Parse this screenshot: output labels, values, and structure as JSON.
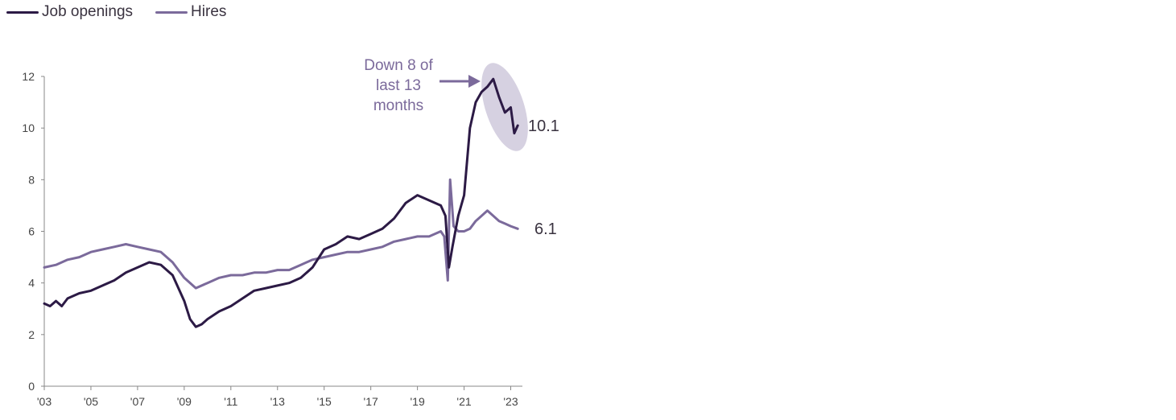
{
  "legend": [
    {
      "label": "Job openings",
      "color": "#2c1a45"
    },
    {
      "label": "Hires",
      "color": "#7b6a9b"
    }
  ],
  "annotation": {
    "lines": [
      "Down 8 of",
      "last 13",
      "months"
    ]
  },
  "end_labels": {
    "job_openings": "10.1",
    "hires": "6.1"
  },
  "chart_data": {
    "type": "line",
    "title": "",
    "xlabel": "",
    "ylabel": "",
    "xlim": [
      2003.0,
      2023.5
    ],
    "ylim": [
      0,
      12
    ],
    "yticks": [
      "0",
      "2",
      "4",
      "6",
      "8",
      "10",
      "12"
    ],
    "xticks": [
      "'03",
      "'05",
      "'07",
      "'09",
      "'11",
      "'13",
      "'15",
      "'17",
      "'19",
      "'21",
      "'23"
    ],
    "grid": false,
    "legend_position": "top-left",
    "series": [
      {
        "name": "Job openings",
        "color": "#2c1a45",
        "x": [
          2003.0,
          2003.25,
          2003.5,
          2003.75,
          2004.0,
          2004.5,
          2005.0,
          2005.5,
          2006.0,
          2006.5,
          2007.0,
          2007.5,
          2008.0,
          2008.5,
          2009.0,
          2009.25,
          2009.5,
          2009.75,
          2010.0,
          2010.5,
          2011.0,
          2011.5,
          2012.0,
          2012.5,
          2013.0,
          2013.5,
          2014.0,
          2014.5,
          2015.0,
          2015.5,
          2016.0,
          2016.5,
          2017.0,
          2017.5,
          2018.0,
          2018.5,
          2019.0,
          2019.5,
          2020.0,
          2020.2,
          2020.35,
          2020.5,
          2020.75,
          2021.0,
          2021.25,
          2021.5,
          2021.75,
          2022.0,
          2022.25,
          2022.5,
          2022.75,
          2023.0,
          2023.15,
          2023.3
        ],
        "values": [
          3.2,
          3.1,
          3.3,
          3.1,
          3.4,
          3.6,
          3.7,
          3.9,
          4.1,
          4.4,
          4.6,
          4.8,
          4.7,
          4.3,
          3.3,
          2.6,
          2.3,
          2.4,
          2.6,
          2.9,
          3.1,
          3.4,
          3.7,
          3.8,
          3.9,
          4.0,
          4.2,
          4.6,
          5.3,
          5.5,
          5.8,
          5.7,
          5.9,
          6.1,
          6.5,
          7.1,
          7.4,
          7.2,
          7.0,
          6.6,
          4.6,
          5.4,
          6.6,
          7.4,
          10.0,
          11.0,
          11.4,
          11.6,
          11.9,
          11.2,
          10.6,
          10.8,
          9.8,
          10.1
        ]
      },
      {
        "name": "Hires",
        "color": "#7b6a9b",
        "x": [
          2003.0,
          2003.5,
          2004.0,
          2004.5,
          2005.0,
          2005.5,
          2006.0,
          2006.5,
          2007.0,
          2007.5,
          2008.0,
          2008.5,
          2009.0,
          2009.5,
          2010.0,
          2010.5,
          2011.0,
          2011.5,
          2012.0,
          2012.5,
          2013.0,
          2013.5,
          2014.0,
          2014.5,
          2015.0,
          2015.5,
          2016.0,
          2016.5,
          2017.0,
          2017.5,
          2018.0,
          2018.5,
          2019.0,
          2019.5,
          2020.0,
          2020.15,
          2020.3,
          2020.4,
          2020.55,
          2020.75,
          2021.0,
          2021.25,
          2021.5,
          2021.75,
          2022.0,
          2022.25,
          2022.5,
          2022.75,
          2023.0,
          2023.3
        ],
        "values": [
          4.6,
          4.7,
          4.9,
          5.0,
          5.2,
          5.3,
          5.4,
          5.5,
          5.4,
          5.3,
          5.2,
          4.8,
          4.2,
          3.8,
          4.0,
          4.2,
          4.3,
          4.3,
          4.4,
          4.4,
          4.5,
          4.5,
          4.7,
          4.9,
          5.0,
          5.1,
          5.2,
          5.2,
          5.3,
          5.4,
          5.6,
          5.7,
          5.8,
          5.8,
          6.0,
          5.8,
          4.1,
          8.0,
          6.2,
          6.0,
          6.0,
          6.1,
          6.4,
          6.6,
          6.8,
          6.6,
          6.4,
          6.3,
          6.2,
          6.1
        ]
      }
    ]
  }
}
